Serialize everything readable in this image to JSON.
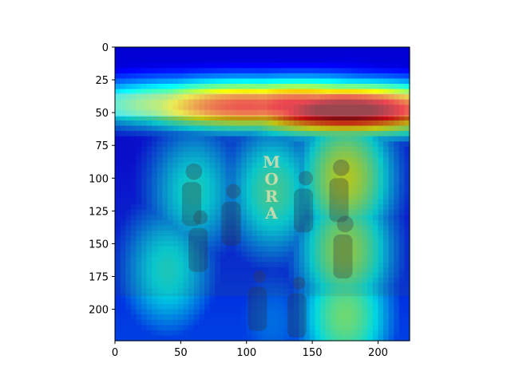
{
  "chart_data": {
    "type": "heatmap",
    "title": "",
    "xlabel": "",
    "ylabel": "",
    "xlim": [
      0,
      224
    ],
    "ylim": [
      224,
      0
    ],
    "x_ticks": [
      0,
      50,
      100,
      150,
      200
    ],
    "y_ticks": [
      0,
      25,
      50,
      75,
      100,
      125,
      150,
      175,
      200
    ],
    "colormap": "jet",
    "overlay_base": "photo of a group of people in front of a wall with a vertical sign",
    "image_text": "MORA",
    "hotspots": [
      {
        "x": 175,
        "y": 48,
        "intensity": 1.0
      },
      {
        "x": 140,
        "y": 45,
        "intensity": 0.85
      },
      {
        "x": 100,
        "y": 45,
        "intensity": 0.8
      },
      {
        "x": 60,
        "y": 44,
        "intensity": 0.55
      },
      {
        "x": 175,
        "y": 100,
        "intensity": 0.55
      },
      {
        "x": 175,
        "y": 155,
        "intensity": 0.5
      },
      {
        "x": 175,
        "y": 205,
        "intensity": 0.45
      },
      {
        "x": 120,
        "y": 110,
        "intensity": 0.4
      },
      {
        "x": 60,
        "y": 110,
        "intensity": 0.35
      },
      {
        "x": 40,
        "y": 170,
        "intensity": 0.35
      },
      {
        "x": 120,
        "y": 210,
        "intensity": 0.2
      }
    ]
  },
  "colors": {
    "deep_blue": "#00007f",
    "blue": "#0000ff",
    "cyan": "#00ffff",
    "yellow": "#ffff00",
    "red": "#ff0000",
    "dark_red": "#7f0000"
  }
}
